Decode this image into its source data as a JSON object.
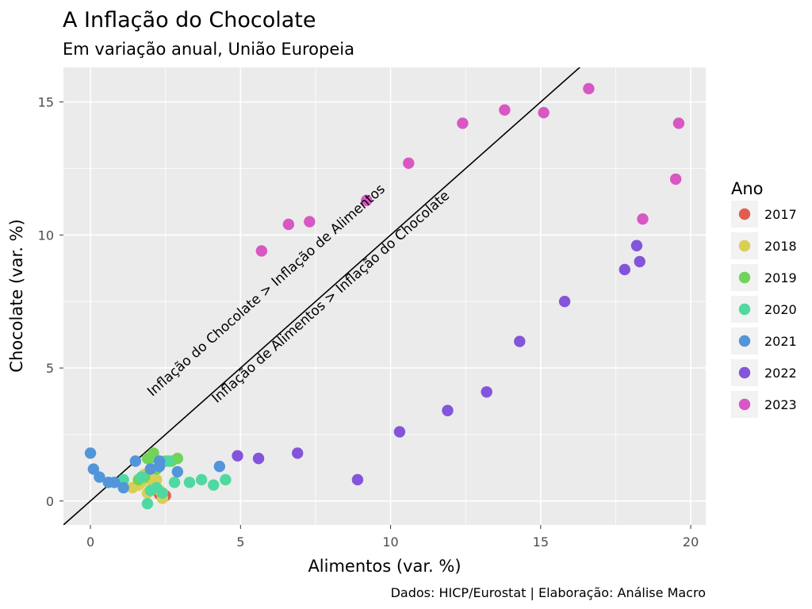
{
  "chart_data": {
    "type": "scatter",
    "title": "A Inflação do Chocolate",
    "subtitle": "Em variação anual, União Europeia",
    "xlabel": "Alimentos (var. %)",
    "ylabel": "Chocolate  (var. %)",
    "caption": "Dados: HICP/Eurostat | Elaboração: Análise Macro",
    "xlim": [
      -0.9,
      20.5
    ],
    "ylim": [
      -0.9,
      16.3
    ],
    "x_ticks": [
      0,
      5,
      10,
      15,
      20
    ],
    "y_ticks": [
      0,
      5,
      10,
      15
    ],
    "x_tick_labels": [
      "0",
      "5",
      "10",
      "15",
      "20"
    ],
    "y_tick_labels": [
      "0",
      "5",
      "10",
      "15"
    ],
    "grid": true,
    "legend_title": "Ano",
    "legend_position": "right",
    "reference_line": {
      "slope": 1,
      "intercept": 0
    },
    "annotations": [
      {
        "text": "Inflação do Chocolate > Inflação de Alimentos",
        "x": 5.95,
        "y": 7.8
      },
      {
        "text": "Inflação de Alimentos > Inflação do Chocolate",
        "x": 8.1,
        "y": 7.55
      }
    ],
    "series": [
      {
        "name": "2017",
        "color": "#E15E4F",
        "x": [
          2.5,
          2.4,
          2.3
        ],
        "y": [
          0.2,
          0.15,
          0.25
        ]
      },
      {
        "name": "2018",
        "color": "#D8CF53",
        "x": [
          1.4,
          1.6,
          1.8,
          2.0,
          2.2,
          2.4,
          1.9,
          1.7,
          2.1,
          2.3
        ],
        "y": [
          0.5,
          0.6,
          1.0,
          0.8,
          0.8,
          0.1,
          0.3,
          0.7,
          0.5,
          0.4
        ]
      },
      {
        "name": "2019",
        "color": "#72D35A",
        "x": [
          1.6,
          1.8,
          1.9,
          2.0,
          2.1,
          2.2,
          2.5,
          2.7,
          2.9
        ],
        "y": [
          0.8,
          0.9,
          1.6,
          1.6,
          1.8,
          1.2,
          1.5,
          1.5,
          1.6
        ]
      },
      {
        "name": "2020",
        "color": "#4FD9A0",
        "x": [
          1.1,
          1.9,
          2.0,
          2.2,
          2.4,
          2.8,
          3.3,
          3.7,
          4.1,
          4.5,
          1.7,
          2.6
        ],
        "y": [
          0.8,
          -0.1,
          0.4,
          0.5,
          0.3,
          0.7,
          0.7,
          0.8,
          0.6,
          0.8,
          0.9,
          1.5
        ]
      },
      {
        "name": "2021",
        "color": "#5295DA",
        "x": [
          0.0,
          0.1,
          0.3,
          0.6,
          0.8,
          1.1,
          1.5,
          2.0,
          2.3,
          2.3,
          2.9,
          4.3
        ],
        "y": [
          1.8,
          1.2,
          0.9,
          0.7,
          0.7,
          0.5,
          1.5,
          1.2,
          1.3,
          1.5,
          1.1,
          1.3
        ]
      },
      {
        "name": "2022",
        "color": "#8454DB",
        "x": [
          4.9,
          5.6,
          6.9,
          8.9,
          10.3,
          11.9,
          13.2,
          14.3,
          15.8,
          17.8,
          18.2,
          18.3
        ],
        "y": [
          1.7,
          1.6,
          1.8,
          0.8,
          2.6,
          3.4,
          4.1,
          6.0,
          7.5,
          8.7,
          9.6,
          9.0
        ]
      },
      {
        "name": "2023",
        "color": "#D857C3",
        "x": [
          5.7,
          6.6,
          7.3,
          9.2,
          10.6,
          12.4,
          13.8,
          15.1,
          16.6,
          18.4,
          19.5,
          19.6
        ],
        "y": [
          9.4,
          10.4,
          10.5,
          11.3,
          12.7,
          14.2,
          14.7,
          14.6,
          15.5,
          10.6,
          12.1,
          14.2
        ]
      }
    ]
  }
}
